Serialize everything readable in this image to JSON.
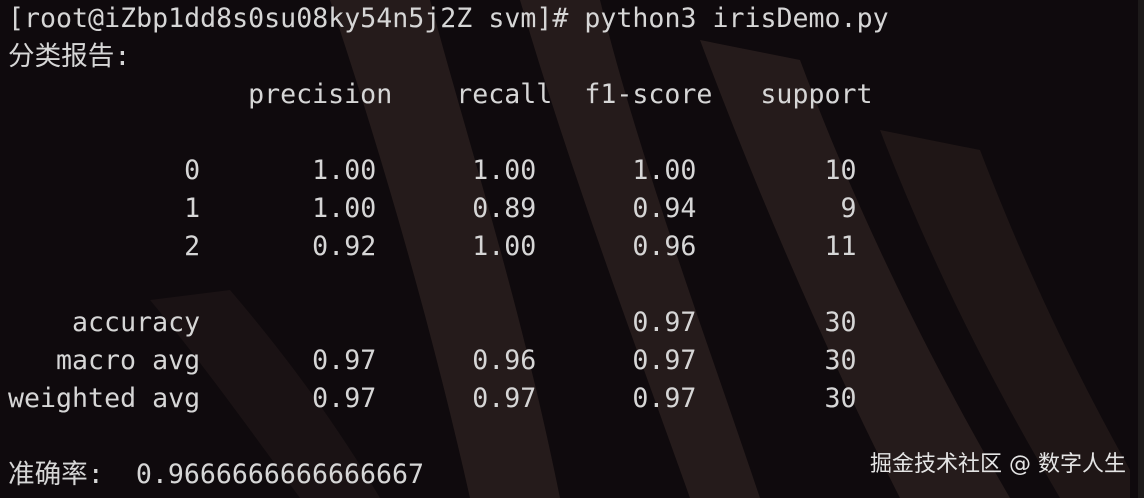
{
  "terminal": {
    "command_line": "[root@iZbp1dd8s0su08ky54n5j2Z svm]# python3 irisDemo.py",
    "report_title": "分类报告:",
    "headers": [
      "precision",
      "recall",
      "f1-score",
      "support"
    ],
    "class_rows": [
      {
        "label": "0",
        "precision": "1.00",
        "recall": "1.00",
        "f1": "1.00",
        "support": "10"
      },
      {
        "label": "1",
        "precision": "1.00",
        "recall": "0.89",
        "f1": "0.94",
        "support": "9"
      },
      {
        "label": "2",
        "precision": "0.92",
        "recall": "1.00",
        "f1": "0.96",
        "support": "11"
      }
    ],
    "summary_rows": [
      {
        "label": "accuracy",
        "precision": "",
        "recall": "",
        "f1": "0.97",
        "support": "30"
      },
      {
        "label": "macro avg",
        "precision": "0.97",
        "recall": "0.96",
        "f1": "0.97",
        "support": "30"
      },
      {
        "label": "weighted avg",
        "precision": "0.97",
        "recall": "0.97",
        "f1": "0.97",
        "support": "30"
      }
    ],
    "accuracy_label": "准确率:",
    "accuracy_value": "0.9666666666666667"
  },
  "watermark": "掘金技术社区 @ 数字人生",
  "colors": {
    "background": "#0f0a0d",
    "text": "#d6d6d6",
    "streak": "#2e2220"
  }
}
